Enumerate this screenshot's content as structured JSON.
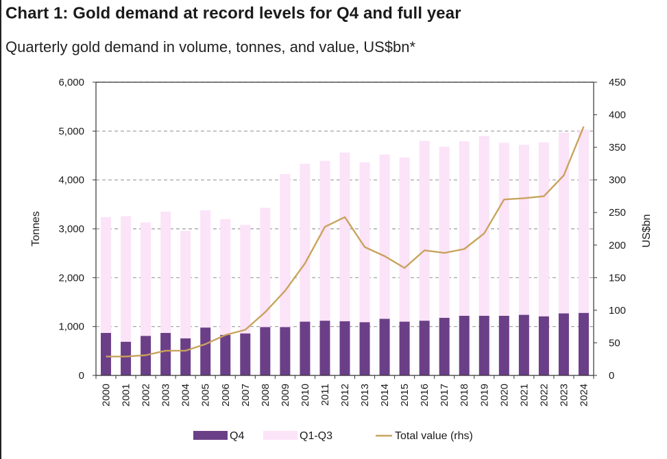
{
  "title": "Chart 1: Gold demand at record levels for Q4 and full year",
  "subtitle": "Quarterly gold demand in volume, tonnes, and value, US$bn*",
  "chart_data": {
    "type": "bar",
    "stacked": true,
    "categories": [
      "2000",
      "2001",
      "2002",
      "2003",
      "2004",
      "2005",
      "2006",
      "2007",
      "2008",
      "2009",
      "2010",
      "2011",
      "2012",
      "2013",
      "2014",
      "2015",
      "2016",
      "2017",
      "2018",
      "2019",
      "2020",
      "2021",
      "2022",
      "2023",
      "2024"
    ],
    "series": [
      {
        "name": "Q4",
        "type": "bar",
        "axis": "left",
        "color": "#6b3f87",
        "values": [
          870,
          690,
          810,
          870,
          760,
          980,
          830,
          860,
          990,
          990,
          1100,
          1120,
          1110,
          1090,
          1160,
          1100,
          1120,
          1180,
          1220,
          1220,
          1220,
          1240,
          1210,
          1270,
          1280
        ]
      },
      {
        "name": "Q1-Q3",
        "type": "bar",
        "axis": "left",
        "color": "#fbe3f8",
        "values": [
          2370,
          2570,
          2320,
          2480,
          2200,
          2400,
          2370,
          2220,
          2440,
          3130,
          3230,
          3270,
          3450,
          3270,
          3360,
          3360,
          3680,
          3500,
          3570,
          3680,
          3540,
          3480,
          3560,
          3700,
          3750
        ]
      },
      {
        "name": "Total value (rhs)",
        "type": "line",
        "axis": "right",
        "color": "#c9a25c",
        "values": [
          29,
          29,
          31,
          38,
          38,
          48,
          62,
          70,
          97,
          130,
          172,
          228,
          243,
          197,
          183,
          165,
          192,
          188,
          194,
          218,
          270,
          272,
          275,
          307,
          382
        ]
      }
    ],
    "y_left": {
      "label": "Tonnes",
      "min": 0,
      "max": 6000,
      "ticks": [
        0,
        1000,
        2000,
        3000,
        4000,
        5000,
        6000
      ],
      "tick_labels": [
        "0",
        "1,000",
        "2,000",
        "3,000",
        "4,000",
        "5,000",
        "6,000"
      ]
    },
    "y_right": {
      "label": "US$bn",
      "min": 0,
      "max": 450,
      "ticks": [
        0,
        50,
        100,
        150,
        200,
        250,
        300,
        350,
        400,
        450
      ],
      "tick_labels": [
        "0",
        "50",
        "100",
        "150",
        "200",
        "250",
        "300",
        "350",
        "400",
        "450"
      ]
    },
    "xlabel": "",
    "grid": "horizontal-dashed",
    "legend_position": "bottom"
  }
}
